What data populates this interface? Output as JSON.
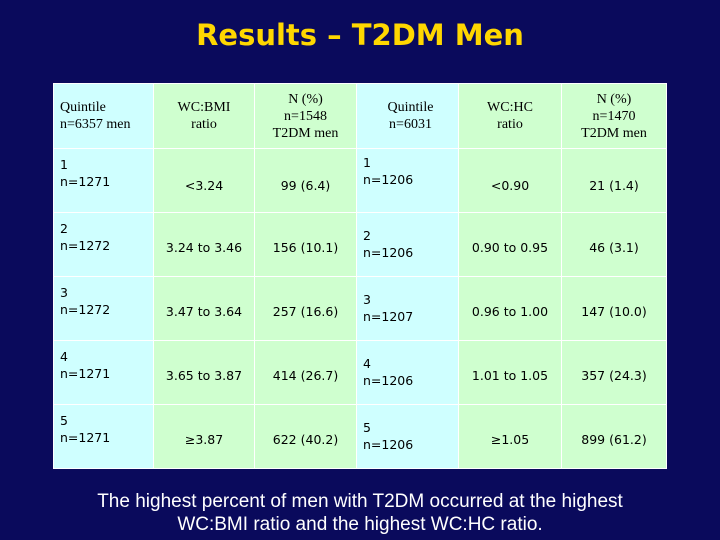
{
  "title": "Results – T2DM Men",
  "table": {
    "headers": [
      {
        "line1": "Quintile",
        "line2": "n=6357 men",
        "line3": ""
      },
      {
        "line1": "WC:BMI",
        "line2": "ratio",
        "line3": ""
      },
      {
        "line1": "N (%)",
        "line2": "n=1548",
        "line3": "T2DM men"
      },
      {
        "line1": "Quintile",
        "line2": "n=6031",
        "line3": ""
      },
      {
        "line1": "WC:HC",
        "line2": "ratio",
        "line3": ""
      },
      {
        "line1": "N (%)",
        "line2": "n=1470",
        "line3": "T2DM men"
      }
    ],
    "rows": [
      {
        "q1": "1",
        "q1n": "n=1271",
        "bmi": "<3.24",
        "n1": "99 (6.4)",
        "q2": "1",
        "q2n": "n=1206",
        "hc": "<0.90",
        "n2": "21 (1.4)"
      },
      {
        "q1": "2",
        "q1n": "n=1272",
        "bmi": "3.24 to 3.46",
        "n1": "156 (10.1)",
        "q2": "2",
        "q2n": "n=1206",
        "hc": "0.90 to 0.95",
        "n2": "46 (3.1)"
      },
      {
        "q1": "3",
        "q1n": "n=1272",
        "bmi": "3.47 to 3.64",
        "n1": "257 (16.6)",
        "q2": "3",
        "q2n": "n=1207",
        "hc": "0.96 to 1.00",
        "n2": "147 (10.0)"
      },
      {
        "q1": "4",
        "q1n": "n=1271",
        "bmi": "3.65 to 3.87",
        "n1": "414 (26.7)",
        "q2": "4",
        "q2n": "n=1206",
        "hc": "1.01 to 1.05",
        "n2": "357 (24.3)"
      },
      {
        "q1": "5",
        "q1n": "n=1271",
        "bmi": "≥3.87",
        "n1": "622 (40.2)",
        "q2": "5",
        "q2n": "n=1206",
        "hc": "≥1.05",
        "n2": "899 (61.2)"
      }
    ]
  },
  "footer": {
    "line1": "The highest percent of men with T2DM occurred at the highest",
    "line2": "WC:BMI ratio and the highest WC:HC ratio."
  },
  "colors": {
    "background": "#0a0a5c",
    "title": "#ffd700",
    "quintile_cell": "#cfffff",
    "value_cell": "#cfffcf"
  }
}
